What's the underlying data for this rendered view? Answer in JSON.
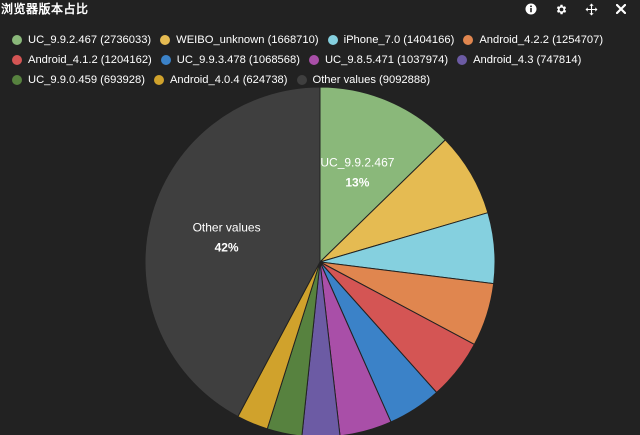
{
  "panel": {
    "title": "浏览器版本占比"
  },
  "toolbar": {
    "buttons": [
      {
        "name": "info-icon",
        "label": "i"
      },
      {
        "name": "gear-icon",
        "label": "⚙"
      },
      {
        "name": "move-icon",
        "label": "✥"
      },
      {
        "name": "close-icon",
        "label": "✕"
      }
    ]
  },
  "chart_data": {
    "type": "pie",
    "title": "浏览器版本占比",
    "legend_placement": "top",
    "slices": [
      {
        "name": "UC_9.9.2.467",
        "value": 2736033,
        "color": "#8ab87a",
        "legend": "UC_9.9.2.467 (2736033)"
      },
      {
        "name": "WEIBO_unknown",
        "value": 1668710,
        "color": "#e5bb52",
        "legend": "WEIBO_unknown (1668710)"
      },
      {
        "name": "iPhone_7.0",
        "value": 1404166,
        "color": "#85d0df",
        "legend": "iPhone_7.0 (1404166)"
      },
      {
        "name": "Android_4.2.2",
        "value": 1254707,
        "color": "#e0864f",
        "legend": "Android_4.2.2 (1254707)"
      },
      {
        "name": "Android_4.1.2",
        "value": 1204162,
        "color": "#d45554",
        "legend": "Android_4.1.2 (1204162)"
      },
      {
        "name": "UC_9.9.3.478",
        "value": 1068568,
        "color": "#3b82c8",
        "legend": "UC_9.9.3.478 (1068568)"
      },
      {
        "name": "UC_9.8.5.471",
        "value": 1037974,
        "color": "#a94fa8",
        "legend": "UC_9.8.5.471 (1037974)"
      },
      {
        "name": "Android_4.3",
        "value": 747814,
        "color": "#6c5ba4",
        "legend": "Android_4.3 (747814)"
      },
      {
        "name": "UC_9.9.0.459",
        "value": 693928,
        "color": "#57823f",
        "legend": "UC_9.9.0.459 (693928)"
      },
      {
        "name": "Android_4.0.4",
        "value": 624738,
        "color": "#d0a22c",
        "legend": "Android_4.0.4 (624738)"
      },
      {
        "name": "Other values",
        "value": 9092888,
        "color": "#3f3f3f",
        "legend": "Other values (9092888)"
      }
    ],
    "data_labels": [
      {
        "slice": "UC_9.9.2.467",
        "label": "UC_9.9.2.467",
        "percent": "13%"
      },
      {
        "slice": "Other values",
        "label": "Other values",
        "percent": "42%"
      }
    ]
  },
  "legend_rows": [
    [
      0,
      1,
      2,
      3
    ],
    [
      4,
      5,
      6,
      7
    ],
    [
      8,
      9,
      10
    ]
  ]
}
